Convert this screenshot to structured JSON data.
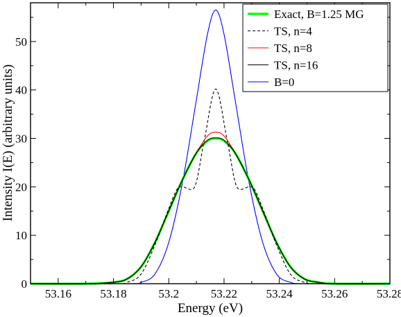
{
  "chart_data": {
    "type": "line",
    "xlabel": "Energy (eV)",
    "ylabel": "Intensity I(E) (arbitrary units)",
    "xlim": [
      53.15,
      53.28
    ],
    "ylim": [
      0,
      58
    ],
    "x_ticks": [
      53.16,
      53.18,
      53.2,
      53.22,
      53.24,
      53.26,
      53.28
    ],
    "x_tick_labels": [
      "53.16",
      "53.18",
      "53.2",
      "53.22",
      "53.24",
      "53.26",
      "53.28"
    ],
    "y_ticks": [
      0,
      10,
      20,
      30,
      40,
      50
    ],
    "y_tick_labels": [
      "0",
      "10",
      "20",
      "30",
      "40",
      "50"
    ],
    "grid": false,
    "legend_position": "top-right",
    "series": [
      {
        "name": "Exact, B=1.25 MG",
        "color": "#00ff00",
        "style": "solid-thick",
        "points": [
          [
            53.15,
            0
          ],
          [
            53.17,
            0
          ],
          [
            53.18,
            0.3
          ],
          [
            53.185,
            1.0
          ],
          [
            53.19,
            3.5
          ],
          [
            53.195,
            8.5
          ],
          [
            53.2,
            15.0
          ],
          [
            53.205,
            21.5
          ],
          [
            53.21,
            27.0
          ],
          [
            53.214,
            29.5
          ],
          [
            53.217,
            30.0
          ],
          [
            53.22,
            29.5
          ],
          [
            53.224,
            27.0
          ],
          [
            53.229,
            21.5
          ],
          [
            53.234,
            15.0
          ],
          [
            53.239,
            8.5
          ],
          [
            53.244,
            3.5
          ],
          [
            53.249,
            1.0
          ],
          [
            53.254,
            0.3
          ],
          [
            53.26,
            0
          ],
          [
            53.28,
            0
          ]
        ]
      },
      {
        "name": "TS, n=4",
        "color": "#000000",
        "style": "dashed",
        "points": [
          [
            53.15,
            0
          ],
          [
            53.18,
            0
          ],
          [
            53.185,
            0.3
          ],
          [
            53.19,
            2.0
          ],
          [
            53.195,
            8.0
          ],
          [
            53.2,
            15.5
          ],
          [
            53.203,
            19.5
          ],
          [
            53.205,
            20.0
          ],
          [
            53.208,
            19.5
          ],
          [
            53.21,
            21.0
          ],
          [
            53.213,
            30.0
          ],
          [
            53.217,
            40.2
          ],
          [
            53.221,
            30.0
          ],
          [
            53.224,
            21.0
          ],
          [
            53.226,
            19.5
          ],
          [
            53.229,
            20.0
          ],
          [
            53.231,
            19.5
          ],
          [
            53.234,
            15.5
          ],
          [
            53.239,
            8.0
          ],
          [
            53.244,
            2.0
          ],
          [
            53.249,
            0.3
          ],
          [
            53.255,
            0
          ],
          [
            53.28,
            0
          ]
        ]
      },
      {
        "name": "TS, n=8",
        "color": "#ff0000",
        "style": "solid",
        "points": [
          [
            53.15,
            0
          ],
          [
            53.17,
            0
          ],
          [
            53.18,
            0.3
          ],
          [
            53.185,
            1.0
          ],
          [
            53.19,
            3.5
          ],
          [
            53.195,
            8.5
          ],
          [
            53.2,
            15.0
          ],
          [
            53.205,
            21.5
          ],
          [
            53.21,
            27.0
          ],
          [
            53.214,
            30.5
          ],
          [
            53.217,
            31.3
          ],
          [
            53.22,
            30.5
          ],
          [
            53.224,
            27.0
          ],
          [
            53.229,
            21.5
          ],
          [
            53.234,
            15.0
          ],
          [
            53.239,
            8.5
          ],
          [
            53.244,
            3.5
          ],
          [
            53.249,
            1.0
          ],
          [
            53.254,
            0.3
          ],
          [
            53.26,
            0
          ],
          [
            53.28,
            0
          ]
        ]
      },
      {
        "name": "TS, n=16",
        "color": "#000000",
        "style": "solid",
        "points": [
          [
            53.15,
            0
          ],
          [
            53.17,
            0
          ],
          [
            53.18,
            0.3
          ],
          [
            53.185,
            1.0
          ],
          [
            53.19,
            3.5
          ],
          [
            53.195,
            8.5
          ],
          [
            53.2,
            15.0
          ],
          [
            53.205,
            21.5
          ],
          [
            53.21,
            27.0
          ],
          [
            53.214,
            29.6
          ],
          [
            53.217,
            30.1
          ],
          [
            53.22,
            29.6
          ],
          [
            53.224,
            27.0
          ],
          [
            53.229,
            21.5
          ],
          [
            53.234,
            15.0
          ],
          [
            53.239,
            8.5
          ],
          [
            53.244,
            3.5
          ],
          [
            53.249,
            1.0
          ],
          [
            53.254,
            0.3
          ],
          [
            53.26,
            0
          ],
          [
            53.28,
            0
          ]
        ]
      },
      {
        "name": "B=0",
        "color": "#0000ff",
        "style": "solid",
        "points": [
          [
            53.15,
            0
          ],
          [
            53.185,
            0
          ],
          [
            53.19,
            0.3
          ],
          [
            53.195,
            2.0
          ],
          [
            53.2,
            8.5
          ],
          [
            53.205,
            21.0
          ],
          [
            53.21,
            38.0
          ],
          [
            53.214,
            51.5
          ],
          [
            53.217,
            56.5
          ],
          [
            53.22,
            51.5
          ],
          [
            53.224,
            38.0
          ],
          [
            53.229,
            21.0
          ],
          [
            53.234,
            8.5
          ],
          [
            53.239,
            2.0
          ],
          [
            53.244,
            0.3
          ],
          [
            53.25,
            0
          ],
          [
            53.28,
            0
          ]
        ]
      }
    ]
  }
}
